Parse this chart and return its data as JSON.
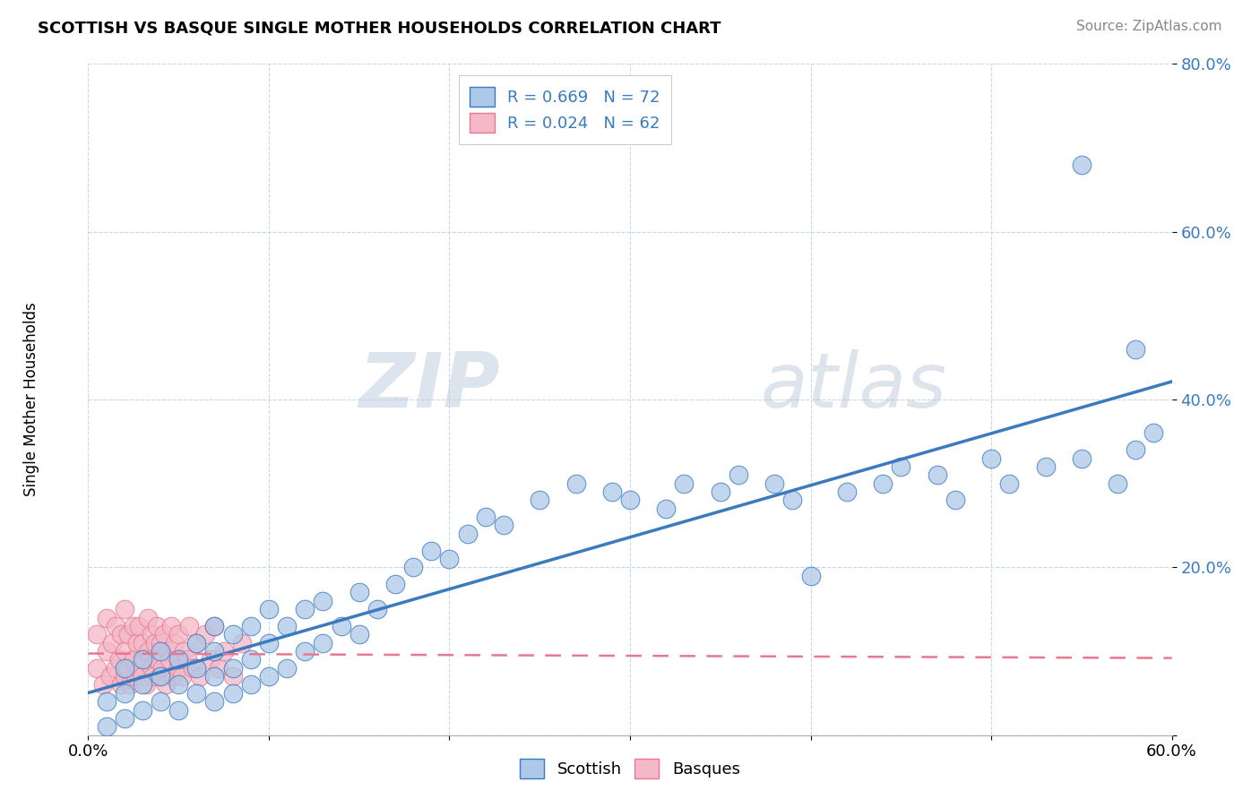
{
  "title": "SCOTTISH VS BASQUE SINGLE MOTHER HOUSEHOLDS CORRELATION CHART",
  "source": "Source: ZipAtlas.com",
  "ylabel": "Single Mother Households",
  "xlim": [
    0.0,
    0.6
  ],
  "ylim": [
    0.0,
    0.8
  ],
  "scottish_R": 0.669,
  "scottish_N": 72,
  "basque_R": 0.024,
  "basque_N": 62,
  "scottish_color": "#adc8e8",
  "basque_color": "#f4b8c8",
  "scottish_line_color": "#3a7abf",
  "basque_line_color": "#e87890",
  "legend_label_scottish": "Scottish",
  "legend_label_basque": "Basques",
  "watermark_zip": "ZIP",
  "watermark_atlas": "atlas",
  "scottish_x": [
    0.01,
    0.01,
    0.02,
    0.02,
    0.02,
    0.03,
    0.03,
    0.03,
    0.04,
    0.04,
    0.04,
    0.05,
    0.05,
    0.05,
    0.06,
    0.06,
    0.06,
    0.07,
    0.07,
    0.07,
    0.07,
    0.08,
    0.08,
    0.08,
    0.09,
    0.09,
    0.09,
    0.1,
    0.1,
    0.1,
    0.11,
    0.11,
    0.12,
    0.12,
    0.13,
    0.13,
    0.14,
    0.15,
    0.15,
    0.16,
    0.17,
    0.18,
    0.19,
    0.2,
    0.21,
    0.22,
    0.23,
    0.25,
    0.27,
    0.29,
    0.3,
    0.32,
    0.33,
    0.35,
    0.36,
    0.38,
    0.39,
    0.4,
    0.42,
    0.44,
    0.45,
    0.47,
    0.48,
    0.5,
    0.51,
    0.53,
    0.55,
    0.57,
    0.58,
    0.59,
    0.55,
    0.58
  ],
  "scottish_y": [
    0.01,
    0.04,
    0.02,
    0.05,
    0.08,
    0.03,
    0.06,
    0.09,
    0.04,
    0.07,
    0.1,
    0.03,
    0.06,
    0.09,
    0.05,
    0.08,
    0.11,
    0.04,
    0.07,
    0.1,
    0.13,
    0.05,
    0.08,
    0.12,
    0.06,
    0.09,
    0.13,
    0.07,
    0.11,
    0.15,
    0.08,
    0.13,
    0.1,
    0.15,
    0.11,
    0.16,
    0.13,
    0.17,
    0.12,
    0.15,
    0.18,
    0.2,
    0.22,
    0.21,
    0.24,
    0.26,
    0.25,
    0.28,
    0.3,
    0.29,
    0.28,
    0.27,
    0.3,
    0.29,
    0.31,
    0.3,
    0.28,
    0.19,
    0.29,
    0.3,
    0.32,
    0.31,
    0.28,
    0.33,
    0.3,
    0.32,
    0.33,
    0.3,
    0.46,
    0.36,
    0.68,
    0.34
  ],
  "basque_x": [
    0.005,
    0.005,
    0.008,
    0.01,
    0.01,
    0.012,
    0.013,
    0.015,
    0.015,
    0.017,
    0.018,
    0.018,
    0.02,
    0.02,
    0.02,
    0.022,
    0.022,
    0.023,
    0.025,
    0.025,
    0.026,
    0.027,
    0.028,
    0.028,
    0.03,
    0.03,
    0.031,
    0.032,
    0.033,
    0.033,
    0.035,
    0.035,
    0.036,
    0.037,
    0.038,
    0.038,
    0.04,
    0.04,
    0.041,
    0.042,
    0.043,
    0.044,
    0.045,
    0.046,
    0.047,
    0.048,
    0.05,
    0.05,
    0.052,
    0.053,
    0.055,
    0.056,
    0.058,
    0.06,
    0.062,
    0.065,
    0.068,
    0.07,
    0.072,
    0.075,
    0.08,
    0.085
  ],
  "basque_y": [
    0.08,
    0.12,
    0.06,
    0.1,
    0.14,
    0.07,
    0.11,
    0.08,
    0.13,
    0.09,
    0.06,
    0.12,
    0.07,
    0.1,
    0.15,
    0.08,
    0.12,
    0.06,
    0.09,
    0.13,
    0.07,
    0.11,
    0.08,
    0.13,
    0.07,
    0.11,
    0.09,
    0.06,
    0.1,
    0.14,
    0.08,
    0.12,
    0.07,
    0.11,
    0.09,
    0.13,
    0.07,
    0.11,
    0.08,
    0.12,
    0.06,
    0.1,
    0.09,
    0.13,
    0.07,
    0.11,
    0.08,
    0.12,
    0.07,
    0.1,
    0.09,
    0.13,
    0.08,
    0.11,
    0.07,
    0.12,
    0.09,
    0.13,
    0.08,
    0.1,
    0.07,
    0.11
  ]
}
